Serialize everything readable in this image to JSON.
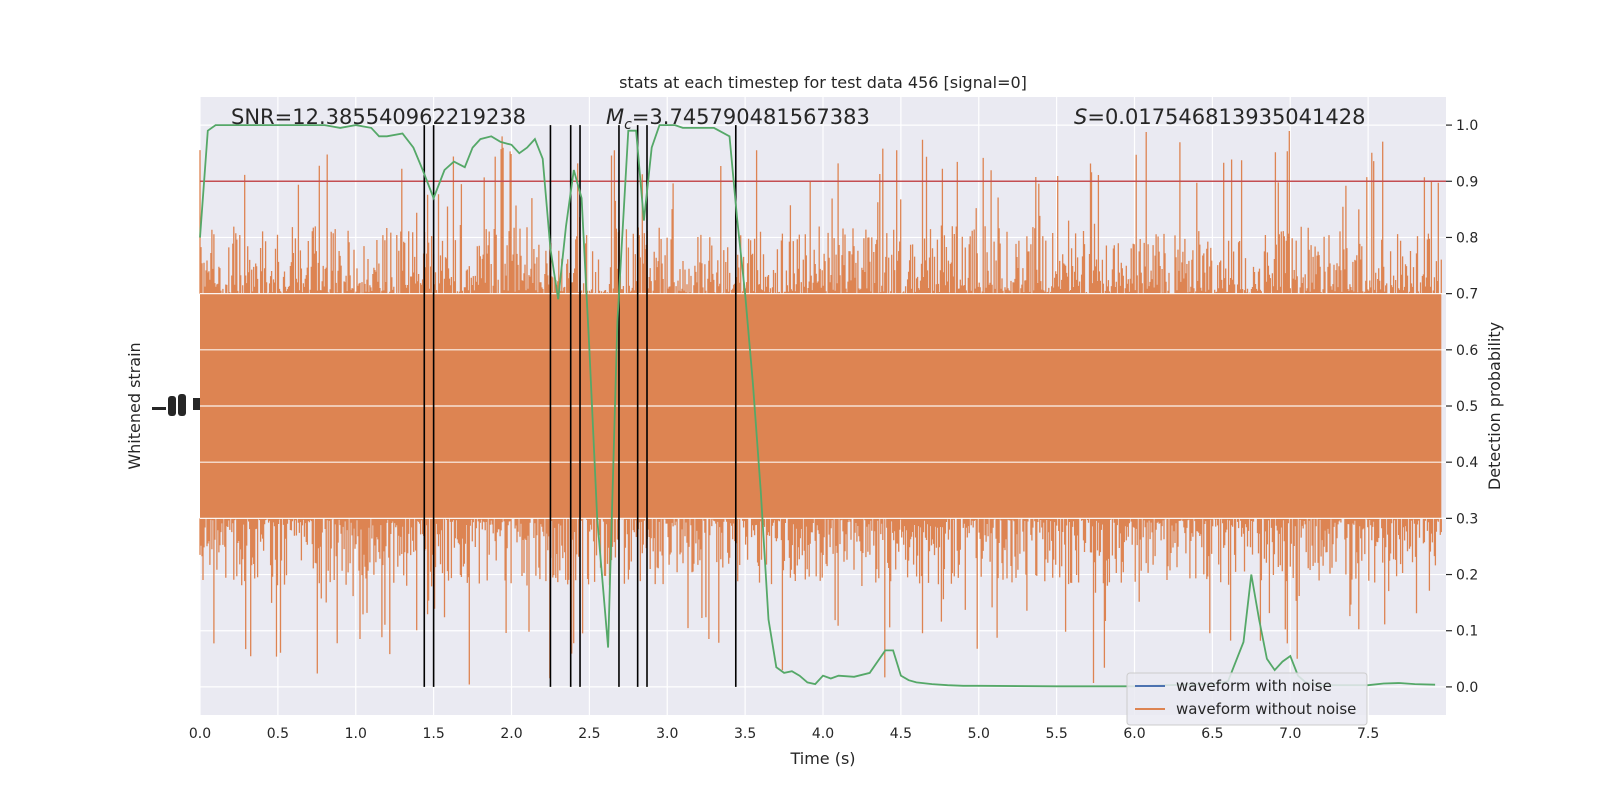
{
  "chart_data": {
    "type": "line",
    "title": "stats at each timestep for test data 456 [signal=0]",
    "xlabel": "Time (s)",
    "ylabel_left": "Whitened strain",
    "ylabel_right": "Detection probability",
    "xlim": [
      0.0,
      8.0
    ],
    "ylim_right": [
      -0.05,
      1.05
    ],
    "x_ticks": [
      "0.0",
      "0.5",
      "1.0",
      "1.5",
      "2.0",
      "2.5",
      "3.0",
      "3.5",
      "4.0",
      "4.5",
      "5.0",
      "5.5",
      "6.0",
      "6.5",
      "7.0",
      "7.5"
    ],
    "y_ticks_right": [
      "0.0",
      "0.1",
      "0.2",
      "0.3",
      "0.4",
      "0.5",
      "0.6",
      "0.7",
      "0.8",
      "0.9",
      "1.0"
    ],
    "grid": true,
    "legend_position": "bottom-right",
    "legend": [
      {
        "label": "waveform with noise",
        "color": "#4c72b0"
      },
      {
        "label": "waveform without noise",
        "color": "#dd8452"
      }
    ],
    "annotations": {
      "snr": "SNR=12.385540962219238",
      "mc_symbol": "M",
      "mc_sub": "c",
      "mc_value": "=3.745790481567383",
      "s_symbol": "S",
      "s_value": "=0.017546813935041428"
    },
    "threshold": 0.9,
    "threshold_color": "#c44e52",
    "detection_color": "#55a868",
    "strain_color": "#dd8452",
    "strain_band": {
      "core_low": 0.3,
      "core_high": 0.7,
      "spike_low_min": 0.0,
      "spike_high_max": 0.99
    },
    "detection_probability": {
      "x": [
        0.0,
        0.05,
        0.1,
        0.15,
        0.2,
        0.3,
        0.4,
        0.5,
        0.6,
        0.7,
        0.8,
        0.9,
        1.0,
        1.1,
        1.15,
        1.2,
        1.3,
        1.37,
        1.43,
        1.5,
        1.57,
        1.63,
        1.7,
        1.75,
        1.8,
        1.87,
        1.93,
        2.0,
        2.05,
        2.1,
        2.15,
        2.2,
        2.25,
        2.3,
        2.35,
        2.4,
        2.45,
        2.5,
        2.55,
        2.62,
        2.68,
        2.75,
        2.8,
        2.85,
        2.9,
        2.95,
        3.0,
        3.05,
        3.1,
        3.2,
        3.3,
        3.4,
        3.45,
        3.5,
        3.55,
        3.6,
        3.65,
        3.7,
        3.75,
        3.8,
        3.85,
        3.9,
        3.95,
        4.0,
        4.05,
        4.1,
        4.2,
        4.3,
        4.4,
        4.45,
        4.5,
        4.55,
        4.6,
        4.7,
        4.8,
        4.9,
        5.0,
        5.5,
        6.0,
        6.2,
        6.5,
        6.6,
        6.7,
        6.75,
        6.8,
        6.85,
        6.9,
        6.95,
        7.0,
        7.05,
        7.1,
        7.2,
        7.3,
        7.4,
        7.5,
        7.6,
        7.7,
        7.8,
        7.93
      ],
      "y": [
        0.8,
        0.99,
        1.0,
        1.0,
        1.0,
        1.0,
        1.0,
        1.0,
        1.0,
        1.0,
        1.0,
        0.995,
        1.0,
        0.995,
        0.98,
        0.98,
        0.985,
        0.96,
        0.92,
        0.87,
        0.92,
        0.935,
        0.925,
        0.96,
        0.975,
        0.98,
        0.97,
        0.965,
        0.95,
        0.96,
        0.975,
        0.94,
        0.78,
        0.69,
        0.82,
        0.92,
        0.87,
        0.6,
        0.3,
        0.07,
        0.65,
        0.99,
        0.99,
        0.83,
        0.96,
        1.0,
        1.0,
        1.0,
        0.995,
        0.995,
        0.995,
        0.98,
        0.83,
        0.7,
        0.54,
        0.35,
        0.12,
        0.035,
        0.025,
        0.028,
        0.02,
        0.008,
        0.005,
        0.02,
        0.015,
        0.02,
        0.018,
        0.025,
        0.065,
        0.065,
        0.02,
        0.012,
        0.008,
        0.005,
        0.003,
        0.002,
        0.002,
        0.001,
        0.001,
        0.003,
        0.005,
        0.01,
        0.08,
        0.2,
        0.12,
        0.05,
        0.03,
        0.045,
        0.055,
        0.02,
        0.008,
        0.003,
        0.003,
        0.003,
        0.003,
        0.006,
        0.007,
        0.005,
        0.004
      ]
    },
    "vertical_lines_x": [
      1.44,
      1.5,
      2.25,
      2.38,
      2.44,
      2.69,
      2.81,
      2.87,
      3.44
    ]
  }
}
